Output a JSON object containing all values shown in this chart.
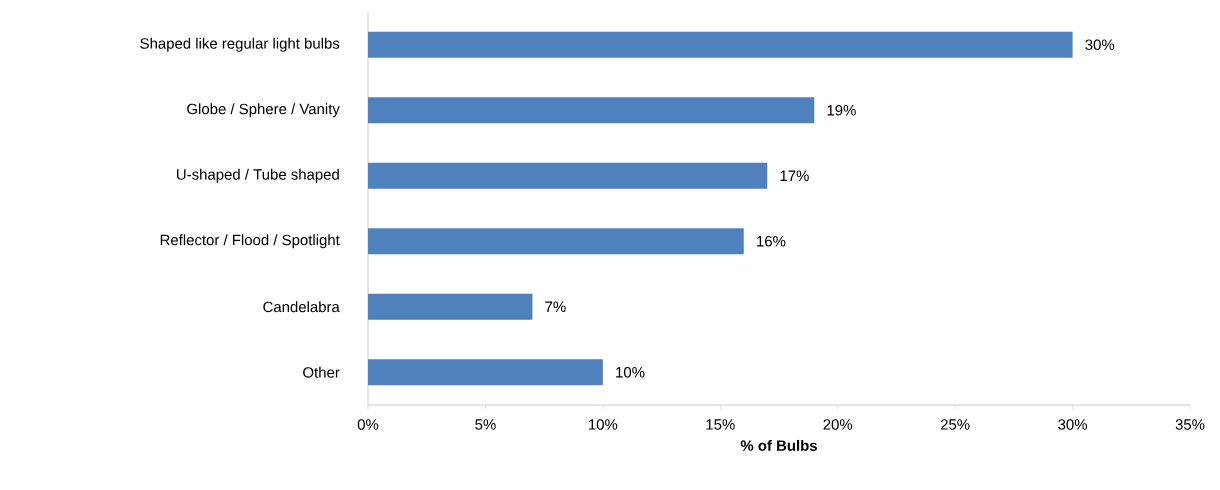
{
  "chart_data": {
    "type": "bar",
    "orientation": "horizontal",
    "categories": [
      "Shaped like regular light bulbs",
      "Globe / Sphere / Vanity",
      "U-shaped / Tube shaped",
      "Reflector / Flood / Spotlight",
      "Candelabra",
      "Other"
    ],
    "values": [
      30,
      19,
      17,
      16,
      7,
      10
    ],
    "value_labels": [
      "30%",
      "19%",
      "17%",
      "16%",
      "7%",
      "10%"
    ],
    "color": "#4f81bd",
    "xlim": [
      0,
      35
    ],
    "xticks": [
      {
        "value": 0,
        "label": "0%"
      },
      {
        "value": 5,
        "label": "5%"
      },
      {
        "value": 10,
        "label": "10%"
      },
      {
        "value": 15,
        "label": "15%"
      },
      {
        "value": 20,
        "label": "20%"
      },
      {
        "value": 25,
        "label": "25%"
      },
      {
        "value": 30,
        "label": "30%"
      },
      {
        "value": 35,
        "label": "35%"
      }
    ],
    "xlabel": "% of Bulbs"
  }
}
